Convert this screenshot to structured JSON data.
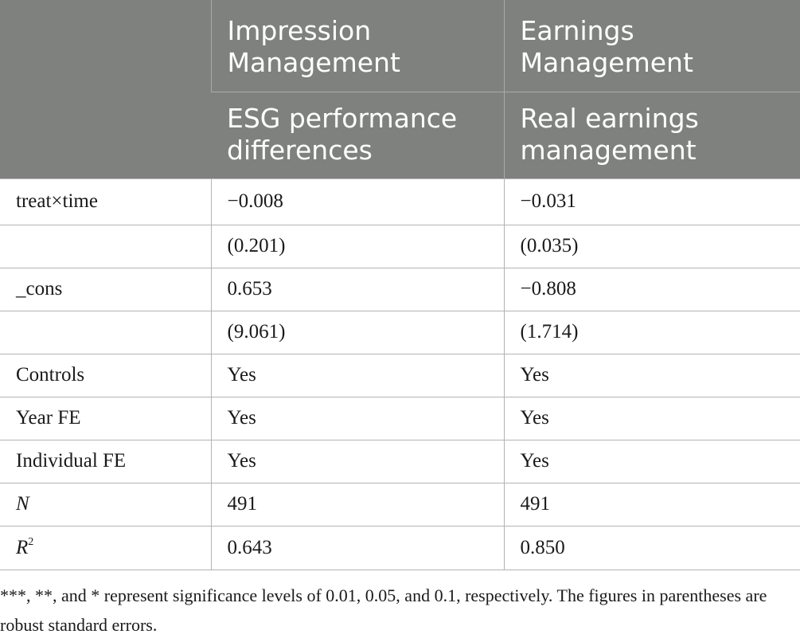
{
  "table": {
    "header_row1": [
      "",
      "Impression Management",
      "Earnings Management"
    ],
    "header_row2": [
      "ESG performance differences",
      "Real earnings management"
    ],
    "rows": [
      {
        "label": "treat×time",
        "c1": "−0.008",
        "c2": "−0.031"
      },
      {
        "label": "",
        "c1": "(0.201)",
        "c2": "(0.035)"
      },
      {
        "label": "_cons",
        "c1": "0.653",
        "c2": "−0.808"
      },
      {
        "label": "",
        "c1": "(9.061)",
        "c2": "(1.714)"
      },
      {
        "label": "Controls",
        "c1": "Yes",
        "c2": "Yes"
      },
      {
        "label": "Year FE",
        "c1": "Yes",
        "c2": "Yes"
      },
      {
        "label": "Individual FE",
        "c1": "Yes",
        "c2": "Yes"
      },
      {
        "label": "N",
        "c1": "491",
        "c2": "491"
      },
      {
        "label": "R",
        "label_sup": "2",
        "c1": "0.643",
        "c2": "0.850"
      }
    ]
  },
  "note": "***, **, and * represent significance levels of 0.01, 0.05, and 0.1, respectively. The figures in parentheses are robust standard errors."
}
